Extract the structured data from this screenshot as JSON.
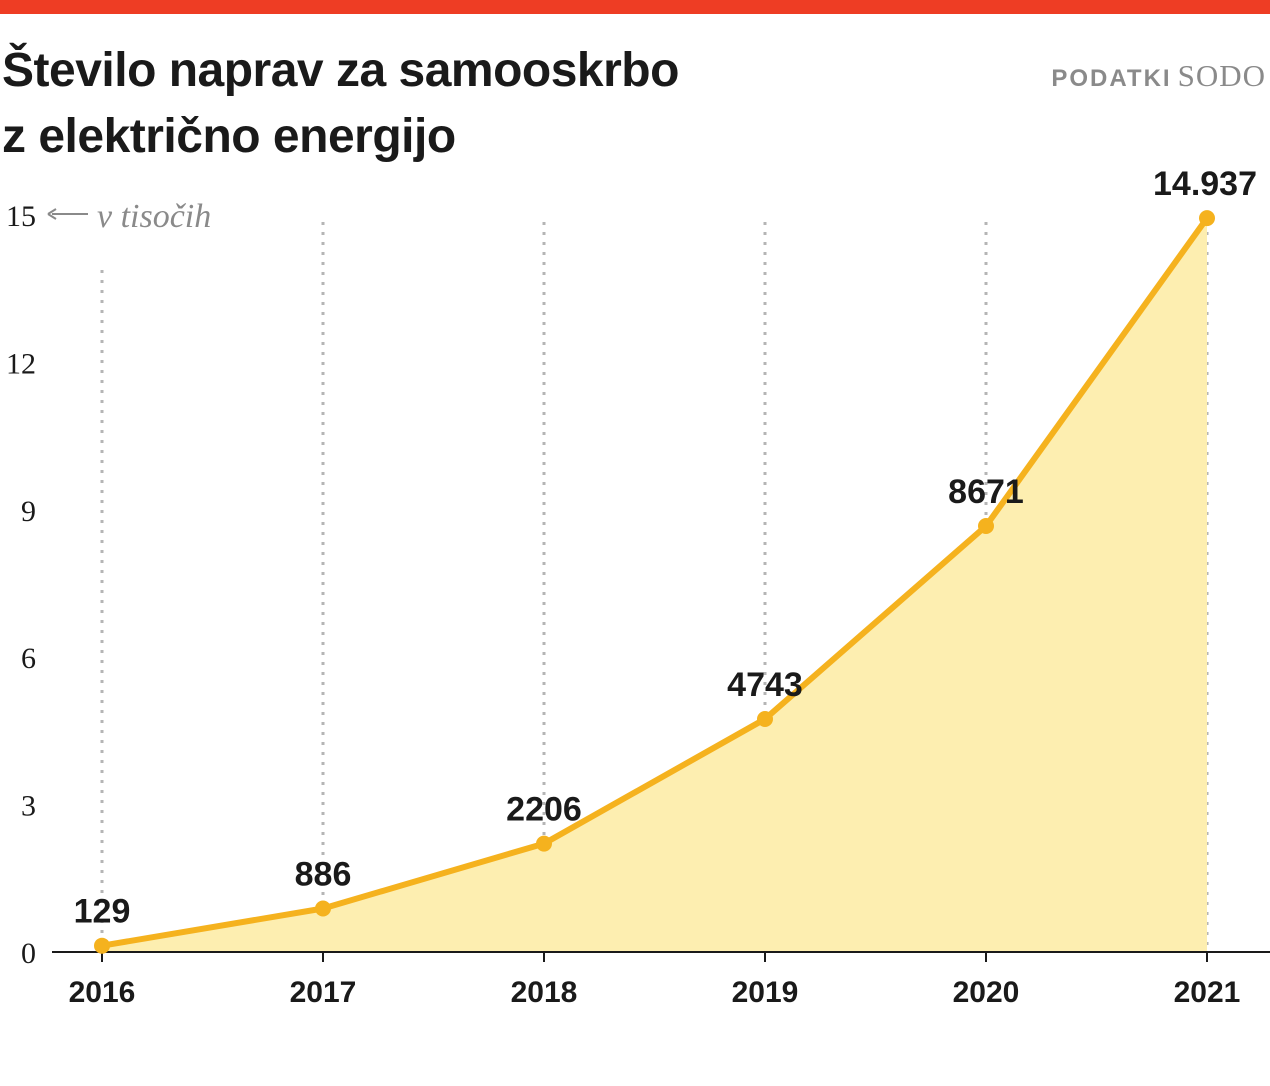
{
  "header": {
    "title_line1": "Število naprav za samooskrbo",
    "title_line2": "z električno energijo",
    "source_label": "PODATKI",
    "source_name": "SODO"
  },
  "colors": {
    "accent_bar": "#ee3d24",
    "line": "#f5b21e",
    "area_fill": "#fdeeb0",
    "gridline": "#b5b5b5",
    "text": "#1a1a1a",
    "muted": "#8a8a8a"
  },
  "chart_data": {
    "type": "area",
    "categories": [
      "2016",
      "2017",
      "2018",
      "2019",
      "2020",
      "2021"
    ],
    "values": [
      0.129,
      0.886,
      2.206,
      4.743,
      8.671,
      14.937
    ],
    "data_labels": [
      "129",
      "886",
      "2206",
      "4743",
      "8671",
      "14.937"
    ],
    "y_ticks": [
      "0",
      "3",
      "6",
      "9",
      "12",
      "15"
    ],
    "ylim": [
      0,
      15
    ],
    "unit_note": "v tisočih",
    "vertical_grid": true,
    "markers": true
  }
}
